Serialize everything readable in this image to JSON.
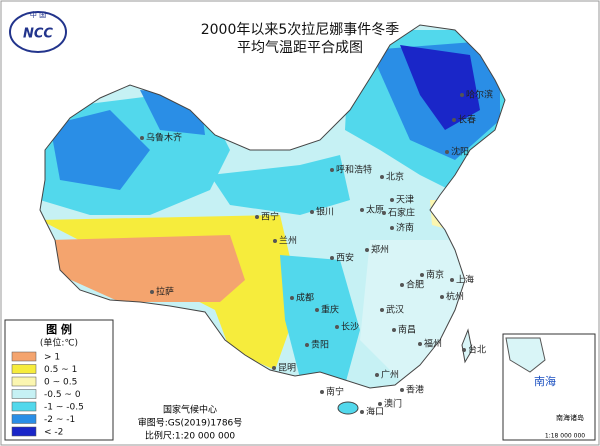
{
  "logo": {
    "top": "中 国",
    "text": "NCC"
  },
  "title": {
    "line1": "2000年以来5次拉尼娜事件冬季",
    "line2": "平均气温距平合成图"
  },
  "legend": {
    "title": "图 例",
    "unit": "(单位:℃)",
    "items": [
      {
        "label": "> 1",
        "color": "#f4a46e"
      },
      {
        "label": "0.5 ~ 1",
        "color": "#f6ec3c"
      },
      {
        "label": "0 ~ 0.5",
        "color": "#fbf6b0"
      },
      {
        "label": "-0.5 ~ 0",
        "color": "#c6f1f4"
      },
      {
        "label": "-1 ~ -0.5",
        "color": "#52d8ec"
      },
      {
        "label": "-2 ~ -1",
        "color": "#2a8ee6"
      },
      {
        "label": "< -2",
        "color": "#1a26c8"
      }
    ]
  },
  "footer": {
    "agency": "国家气候中心",
    "approval": "审图号:GS(2019)1786号",
    "scale": "比例尺:1:20 000 000"
  },
  "inset": {
    "sea": "南海",
    "islands": "南海诸岛",
    "scale": "1:18 000 000"
  },
  "cities": [
    "乌鲁木齐",
    "哈尔滨",
    "长春",
    "沈阳",
    "呼和浩特",
    "北京",
    "天津",
    "太原",
    "石家庄",
    "银川",
    "西宁",
    "兰州",
    "济南",
    "郑州",
    "西安",
    "拉萨",
    "成都",
    "重庆",
    "武汉",
    "合肥",
    "南京",
    "上海",
    "杭州",
    "长沙",
    "南昌",
    "贵阳",
    "福州",
    "台北",
    "昆明",
    "南宁",
    "广州",
    "香港",
    "澳门",
    "海口"
  ]
}
